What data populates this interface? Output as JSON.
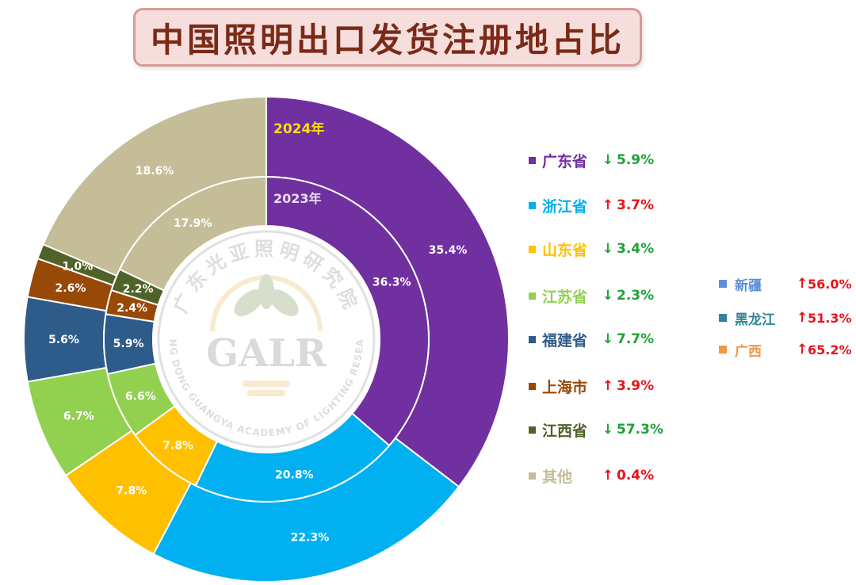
{
  "title": "中国照明出口发货注册地占比",
  "chart_data": {
    "type": "pie",
    "variant": "nested-donut",
    "rings": [
      {
        "name": "2024年",
        "position": "outer"
      },
      {
        "name": "2023年",
        "position": "inner"
      }
    ],
    "categories": [
      "广东省",
      "浙江省",
      "山东省",
      "江苏省",
      "福建省",
      "上海市",
      "江西省",
      "其他"
    ],
    "colors": [
      "#7030a0",
      "#00b0f0",
      "#ffc000",
      "#92d050",
      "#2e5c8a",
      "#984807",
      "#4f6228",
      "#c4bd97"
    ],
    "series": [
      {
        "name": "2024年",
        "values": [
          35.4,
          22.3,
          7.8,
          6.7,
          5.6,
          2.6,
          1.0,
          18.6
        ],
        "labels": [
          "35.4%",
          "22.3%",
          "7.8%",
          "6.7%",
          "5.6%",
          "2.6%",
          "1.0%",
          "18.6%"
        ]
      },
      {
        "name": "2023年",
        "values": [
          36.3,
          20.8,
          7.8,
          6.6,
          5.9,
          2.4,
          2.2,
          17.9
        ],
        "labels": [
          "36.3%",
          "20.8%",
          "7.8%",
          "6.6%",
          "5.9%",
          "2.4%",
          "2.2%",
          "17.9%"
        ]
      }
    ],
    "legend": [
      {
        "name": "广东省",
        "arrow": "↓",
        "change": "5.9%",
        "trend": "down"
      },
      {
        "name": "浙江省",
        "arrow": "↑",
        "change": "3.7%",
        "trend": "up"
      },
      {
        "name": "山东省",
        "arrow": "↓",
        "change": "3.4%",
        "trend": "down"
      },
      {
        "name": "江苏省",
        "arrow": "↓",
        "change": "2.3%",
        "trend": "down"
      },
      {
        "name": "福建省",
        "arrow": "↓",
        "change": "7.7%",
        "trend": "down"
      },
      {
        "name": "上海市",
        "arrow": "↑",
        "change": "3.9%",
        "trend": "up"
      },
      {
        "name": "江西省",
        "arrow": "↓",
        "change": "57.3%",
        "trend": "down"
      },
      {
        "name": "其他",
        "arrow": "↑",
        "change": "0.4%",
        "trend": "up"
      }
    ],
    "legend_position": "right",
    "side_legend": [
      {
        "name": "新疆",
        "arrow": "↑",
        "change": "56.0%",
        "color": "#5b8fd6"
      },
      {
        "name": "黑龙江",
        "arrow": "↑",
        "change": "51.3%",
        "color": "#31849b"
      },
      {
        "name": "广西",
        "arrow": "↑",
        "change": "65.2%",
        "color": "#f79646"
      }
    ],
    "trend_colors": {
      "up": "#e8141a",
      "down": "#1ea237"
    }
  },
  "watermark": {
    "monogram": "GALR",
    "chinese_arc": "广东光亚照明研究院",
    "english_arc": "GUANG DONG GUANGYA ACADEMY OF LIGHTING RESEARCH"
  }
}
